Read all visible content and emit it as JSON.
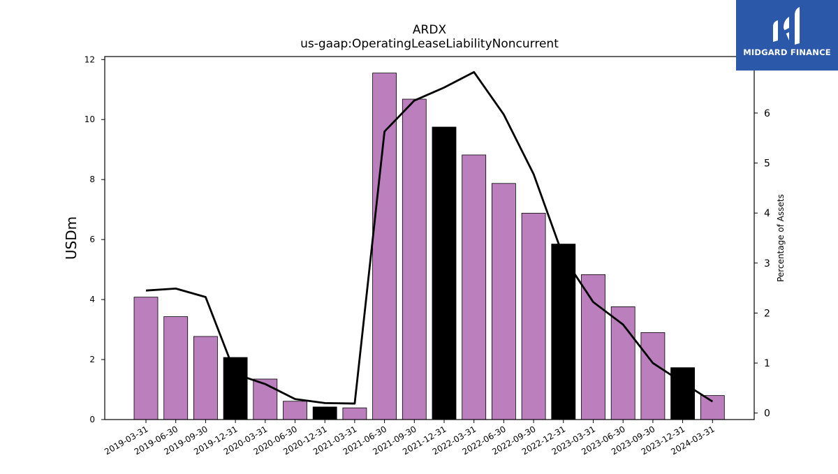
{
  "colors": {
    "bar": "#bb7fbd",
    "bar_highlight": "#000000",
    "line": "#000000",
    "logo_bg": "#2b58a8"
  },
  "logo": {
    "text": "MIDGARD FINANCE",
    "icon": "midgard-logo-icon"
  },
  "chart_data": {
    "type": "bar",
    "title": "ARDX",
    "subtitle": "us-gaap:OperatingLeaseLiabilityNoncurrent",
    "ylabel": "USDm",
    "y2label": "Percentage of Assets",
    "ylim": [
      0,
      12.1
    ],
    "y2lim": [
      -0.13,
      7.13
    ],
    "yticks": [
      0,
      2,
      4,
      6,
      8,
      10,
      12
    ],
    "y2ticks": [
      0,
      1,
      2,
      3,
      4,
      5,
      6
    ],
    "categories": [
      "2019-03-31",
      "2019-06-30",
      "2019-09-30",
      "2019-12-31",
      "2020-03-31",
      "2020-06-30",
      "2020-12-31",
      "2021-03-31",
      "2021-06-30",
      "2021-09-30",
      "2021-12-31",
      "2022-03-31",
      "2022-06-30",
      "2022-09-30",
      "2022-12-31",
      "2023-03-31",
      "2023-06-30",
      "2023-09-30",
      "2023-12-31",
      "2024-03-31"
    ],
    "series": [
      {
        "type": "bar",
        "values": [
          4.08,
          3.43,
          2.77,
          2.07,
          1.35,
          0.61,
          0.42,
          0.39,
          11.55,
          10.68,
          9.75,
          8.82,
          7.87,
          6.88,
          5.85,
          4.83,
          3.76,
          2.9,
          1.73,
          0.8
        ],
        "highlight": [
          false,
          false,
          false,
          true,
          false,
          false,
          true,
          false,
          false,
          false,
          true,
          false,
          false,
          false,
          true,
          false,
          false,
          false,
          true,
          false
        ]
      },
      {
        "type": "line",
        "axis": "right",
        "values": [
          2.45,
          2.49,
          2.32,
          0.78,
          0.58,
          0.28,
          0.2,
          0.19,
          5.63,
          6.25,
          6.51,
          6.82,
          5.97,
          4.78,
          3.12,
          2.22,
          1.77,
          1.0,
          0.61,
          0.23
        ]
      }
    ]
  }
}
